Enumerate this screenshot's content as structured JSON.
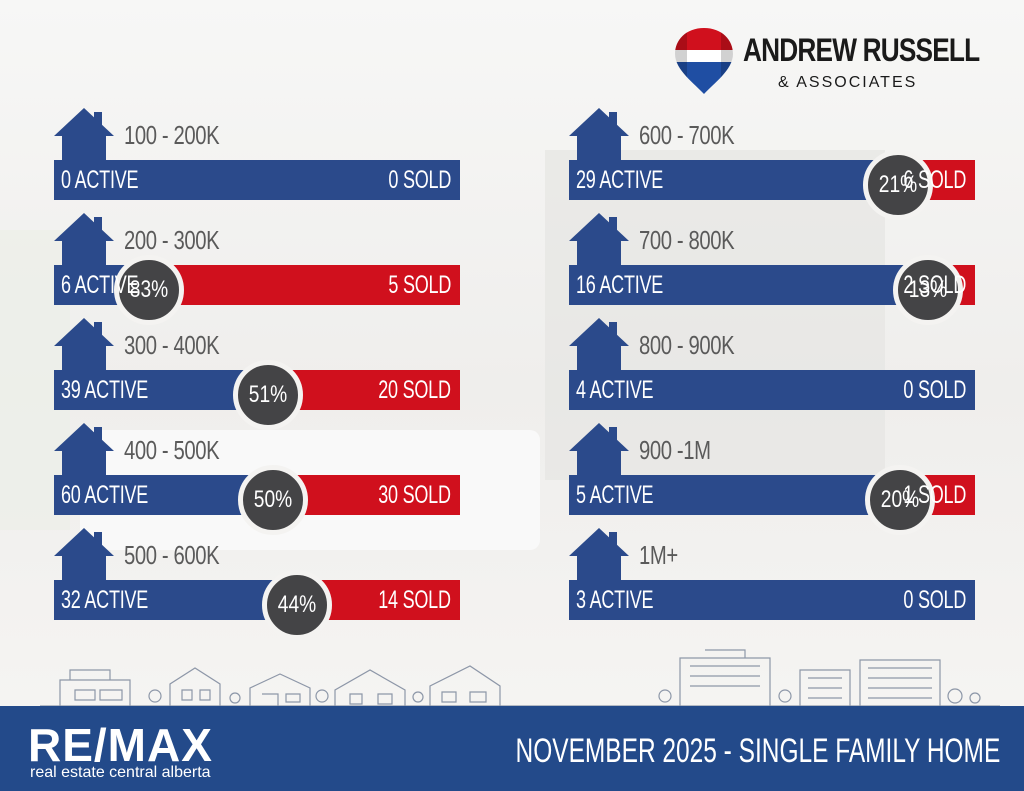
{
  "brand": {
    "name": "ANDREW RUSSELL",
    "associates": "& ASSOCIATES",
    "colors": {
      "red": "#d0101d",
      "blue": "#2b4a8b",
      "dark": "#444446"
    }
  },
  "footer": {
    "logo": "RE/MAX",
    "logo_sub": "real estate central alberta",
    "title": "NOVEMBER 2025 -  SINGLE FAMILY HOME"
  },
  "chart_data": {
    "type": "bar",
    "title": "NOVEMBER 2025 -  SINGLE FAMILY HOME",
    "series_names": [
      "ACTIVE",
      "SOLD"
    ],
    "ranges": [
      {
        "range": "100 - 200K",
        "active": 0,
        "sold": 0,
        "active_label": "0 ACTIVE",
        "sold_label": "0 SOLD",
        "pct": null,
        "pct_label": ""
      },
      {
        "range": "200 - 300K",
        "active": 6,
        "sold": 5,
        "active_label": "6 ACTIVE",
        "sold_label": "5 SOLD",
        "pct": 83,
        "pct_label": "83%"
      },
      {
        "range": "300 - 400K",
        "active": 39,
        "sold": 20,
        "active_label": "39 ACTIVE",
        "sold_label": "20 SOLD",
        "pct": 51,
        "pct_label": "51%"
      },
      {
        "range": "400 - 500K",
        "active": 60,
        "sold": 30,
        "active_label": "60 ACTIVE",
        "sold_label": "30 SOLD",
        "pct": 50,
        "pct_label": "50%"
      },
      {
        "range": "500 - 600K",
        "active": 32,
        "sold": 14,
        "active_label": "32 ACTIVE",
        "sold_label": "14 SOLD",
        "pct": 44,
        "pct_label": "44%"
      },
      {
        "range": "600 - 700K",
        "active": 29,
        "sold": 6,
        "active_label": "29 ACTIVE",
        "sold_label": "6 SOLD",
        "pct": 21,
        "pct_label": "21%"
      },
      {
        "range": "700 - 800K",
        "active": 16,
        "sold": 2,
        "active_label": "16 ACTIVE",
        "sold_label": "2 SOLD",
        "pct": 13,
        "pct_label": "13%"
      },
      {
        "range": "800 - 900K",
        "active": 4,
        "sold": 0,
        "active_label": "4 ACTIVE",
        "sold_label": "0 SOLD",
        "pct": null,
        "pct_label": ""
      },
      {
        "range": "900 -1M",
        "active": 5,
        "sold": 1,
        "active_label": "5 ACTIVE",
        "sold_label": "1 SOLD",
        "pct": 20,
        "pct_label": "20%"
      },
      {
        "range": "1M+",
        "active": 3,
        "sold": 0,
        "active_label": "3 ACTIVE",
        "sold_label": "0 SOLD",
        "pct": null,
        "pct_label": ""
      }
    ]
  }
}
